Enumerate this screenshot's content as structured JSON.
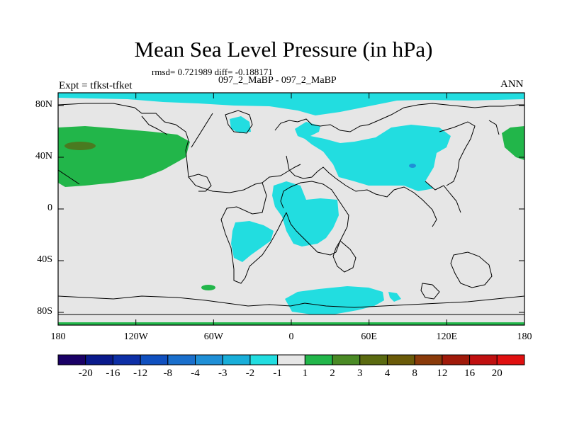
{
  "title": "Mean Sea Level Pressure (in hPa)",
  "stats": "rmsd= 0.721989 diff= -0.188171",
  "subtitle": "097_2_MaBP - 097_2_MaBP",
  "experiment": "Expt = tfkst-tfket",
  "season": "ANN",
  "lat_labels": [
    "80N",
    "40N",
    "0",
    "40S",
    "80S"
  ],
  "lon_labels": [
    "180",
    "120W",
    "60W",
    "0",
    "60E",
    "120E",
    "180"
  ],
  "colorbar": {
    "labels": [
      "-20",
      "-16",
      "-12",
      "-8",
      "-4",
      "-3",
      "-2",
      "-1",
      "1",
      "2",
      "3",
      "4",
      "8",
      "12",
      "16",
      "20"
    ],
    "colors": [
      "#1a0066",
      "#0a1a8c",
      "#0d2fa6",
      "#1050bf",
      "#1a6fcc",
      "#1f8fd6",
      "#19aed9",
      "#22dde0",
      "#e6e6e6",
      "#22b64a",
      "#4a8a25",
      "#5a6a10",
      "#6a5a08",
      "#8a3a0a",
      "#a01a0a",
      "#c01010",
      "#e01010"
    ]
  },
  "colors": {
    "land_fill": "#e6e6e6",
    "positive_region": "#22b64a",
    "strong_positive_region": "#4a7a20",
    "negative_region": "#22dde0",
    "strong_negative_region": "#1f8fd6"
  }
}
